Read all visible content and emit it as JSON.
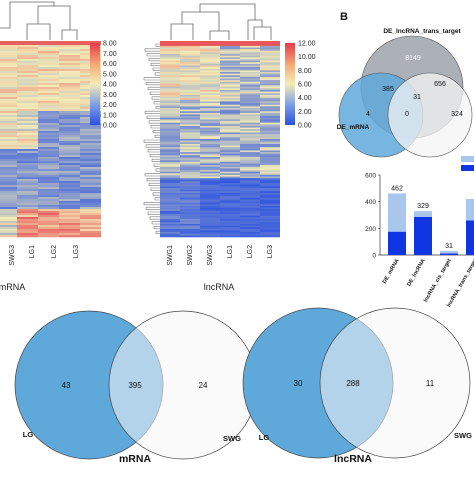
{
  "panel_b_label": "B",
  "heatmap_mrna": {
    "colorbar_ticks": [
      "8.00",
      "7.00",
      "6.00",
      "5.00",
      "4.00",
      "3.00",
      "2.00",
      "1.00",
      "0.00"
    ],
    "column_labels": [
      "SWG3",
      "LG1",
      "LG2",
      "LG3"
    ],
    "axis_label": "mRNA",
    "colors": {
      "low": "#2b52e0",
      "mid": "#f3ecb6",
      "high": "#e63a49"
    }
  },
  "heatmap_lncrna": {
    "colorbar_ticks": [
      "12.00",
      "10.00",
      "8.00",
      "6.00",
      "4.00",
      "2.00",
      "0.00"
    ],
    "column_labels": [
      "SWG1",
      "SWG2",
      "SWG3",
      "LG1",
      "LG2",
      "LG3"
    ],
    "axis_label": "lncRNA"
  },
  "venn_top": {
    "sets": [
      "DE_lncRNA_trans_target",
      "DE_mRNA"
    ],
    "values": {
      "trans_only": "8149",
      "trans_left": "385",
      "trans_right": "656",
      "center": "31",
      "mrna_only": "4",
      "bottom_mid": "0",
      "right_only": "324"
    },
    "colors": {
      "gray": "#9aa1a9",
      "blue": "#5fa9da",
      "white": "#f4f4f4"
    }
  },
  "bar_chart": {
    "chart_data": {
      "type": "bar",
      "categories": [
        "DE_mRNA",
        "DE_lncRNA",
        "lncRNA_cis_target",
        "lncRNA_trans_target"
      ],
      "total_labels": [
        "462",
        "329",
        "31",
        ""
      ],
      "series": [
        {
          "values": [
            175,
            285,
            12,
            260
          ],
          "color": "#1036e3"
        },
        {
          "values": [
            287,
            44,
            19,
            160
          ],
          "color": "#a9c6ec"
        }
      ],
      "y_ticks": [
        "600",
        "400",
        "200",
        "0"
      ],
      "ylim": [
        0,
        600
      ]
    }
  },
  "venn_mrna": {
    "left_value": "43",
    "center_value": "395",
    "right_value": "24",
    "left_label": "LG",
    "right_label": "SWG",
    "caption": "mRNA"
  },
  "venn_lncrna": {
    "left_value": "30",
    "center_value": "288",
    "right_value": "11",
    "left_label": "LG",
    "right_label": "SWG",
    "caption": "lncRNA"
  }
}
